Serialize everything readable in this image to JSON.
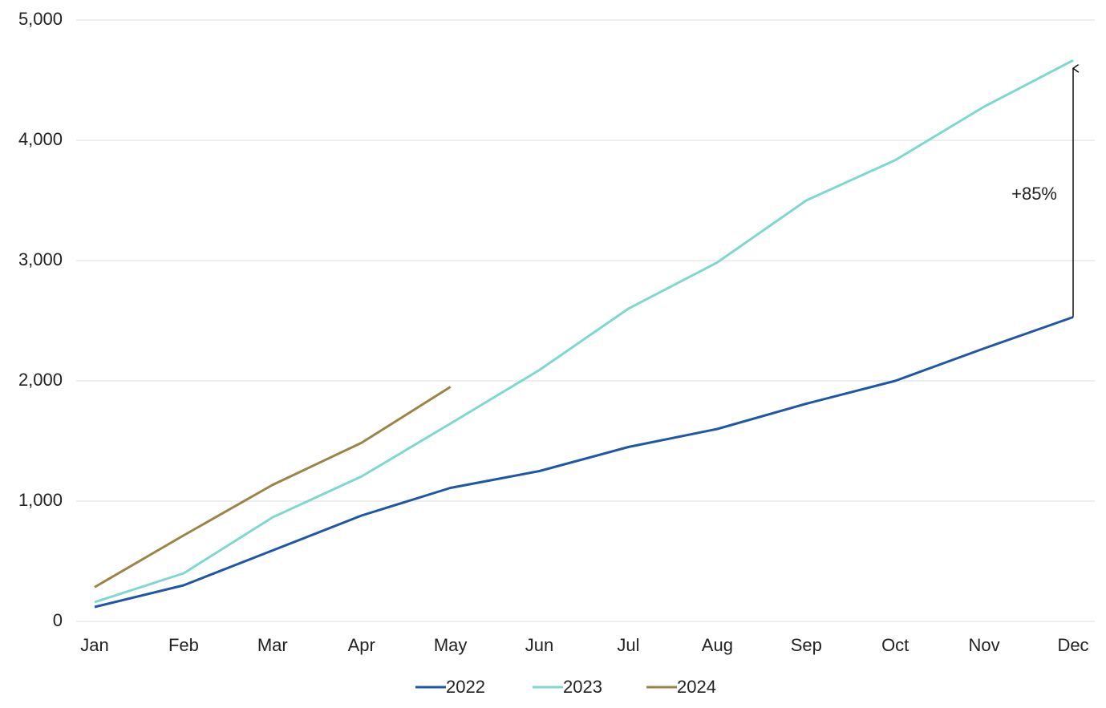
{
  "chart_data": {
    "type": "line",
    "categories": [
      "Jan",
      "Feb",
      "Mar",
      "Apr",
      "May",
      "Jun",
      "Jul",
      "Aug",
      "Sep",
      "Oct",
      "Nov",
      "Dec"
    ],
    "series": [
      {
        "name": "2022",
        "color": "#1f56a8",
        "values": [
          120,
          300,
          590,
          880,
          1110,
          1250,
          1450,
          1600,
          1810,
          2000,
          2270,
          2530
        ]
      },
      {
        "name": "2023",
        "color": "#7fd8d0",
        "values": [
          160,
          400,
          865,
          1205,
          1645,
          2090,
          2600,
          2985,
          3500,
          3835,
          4280,
          4665
        ]
      },
      {
        "name": "2024",
        "color": "#9a8548",
        "values": [
          285,
          715,
          1135,
          1485,
          1950,
          null,
          null,
          null,
          null,
          null,
          null,
          null
        ]
      }
    ],
    "ylim": [
      0,
      5000
    ],
    "yticks": [
      0,
      {
        "value": 1000,
        "label": "1,000"
      },
      {
        "value": 2000,
        "label": "2,000"
      },
      {
        "value": 3000,
        "label": "3,000"
      },
      {
        "value": 4000,
        "label": "4,000"
      },
      {
        "value": 5000,
        "label": "5,000"
      }
    ],
    "grid": true,
    "legend": "bottom",
    "annotation": "+85%"
  }
}
